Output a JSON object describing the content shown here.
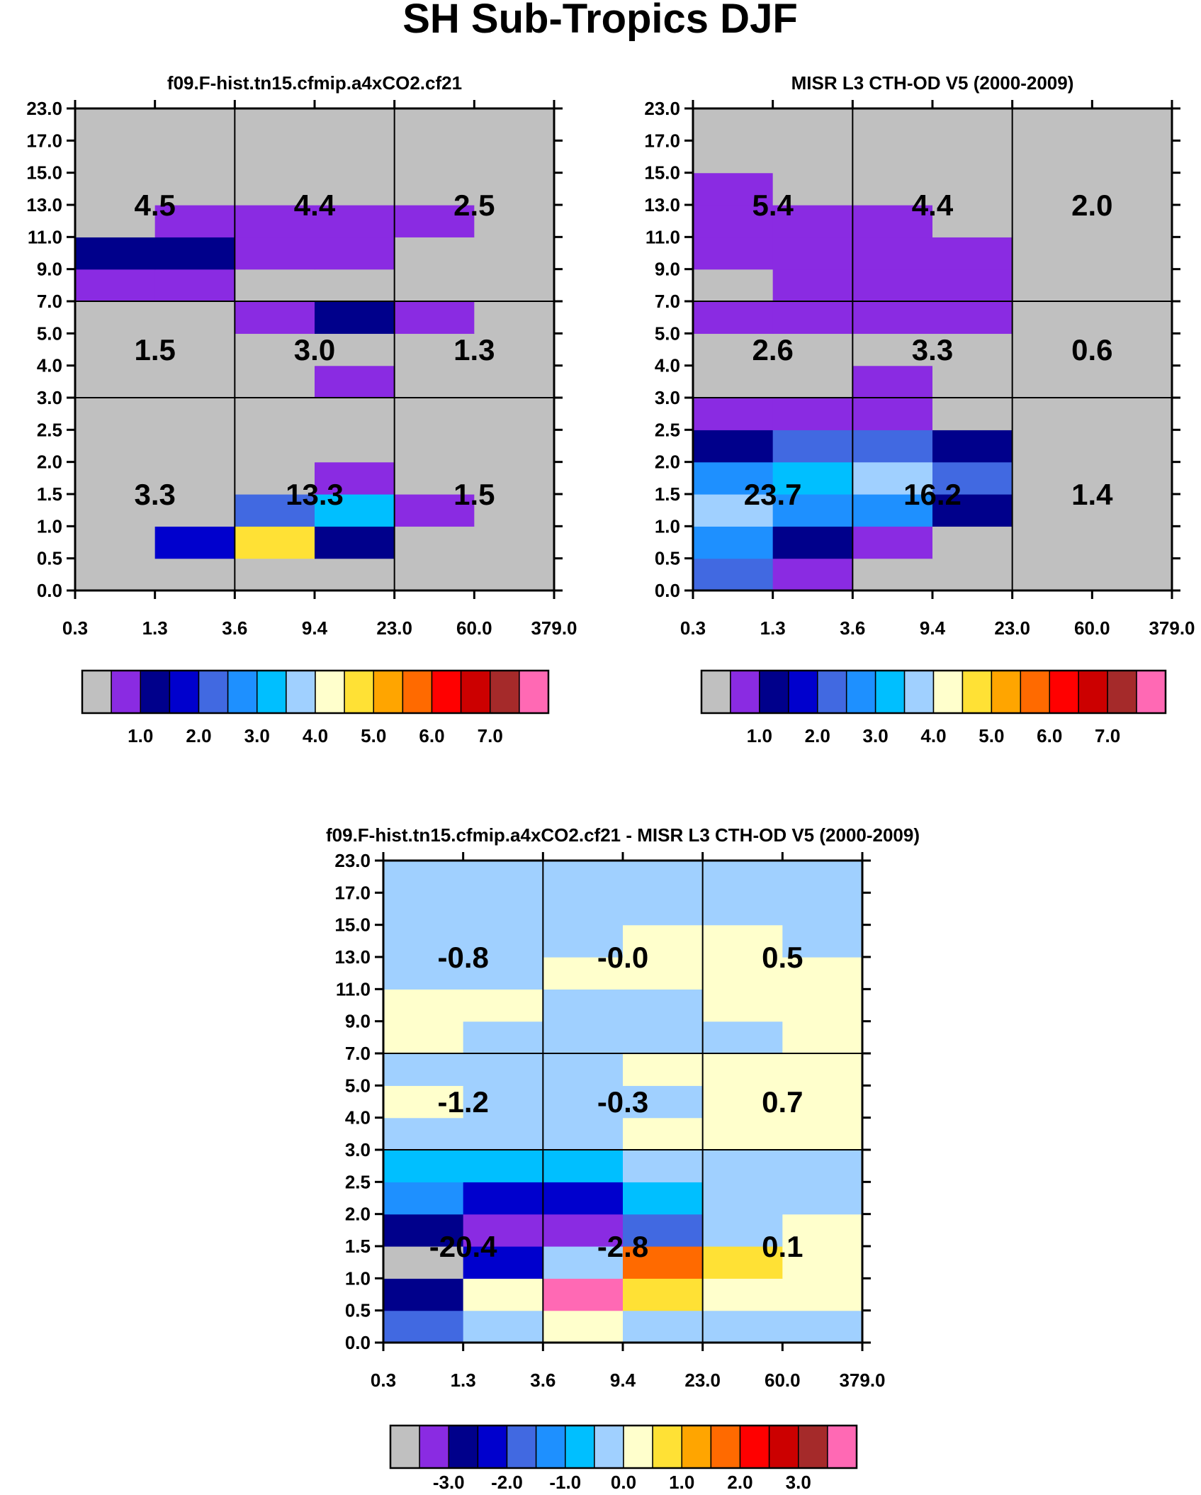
{
  "figure_title": "SH Sub-Tropics DJF",
  "chart_data": [
    {
      "type": "heatmap",
      "id": "model",
      "title": "f09.F-hist.tn15.cfmip.a4xCO2.cf21",
      "x_ticks": [
        "0.3",
        "1.3",
        "3.6",
        "9.4",
        "23.0",
        "60.0",
        "379.0"
      ],
      "y_ticks": [
        "0.0",
        "0.5",
        "1.0",
        "1.5",
        "2.0",
        "2.5",
        "3.0",
        "4.0",
        "5.0",
        "7.0",
        "9.0",
        "11.0",
        "13.0",
        "15.0",
        "17.0",
        "23.0"
      ],
      "cell_colors": [
        [
          "#c0c0c0",
          "#c0c0c0",
          "#c0c0c0",
          "#c0c0c0",
          "#c0c0c0",
          "#c0c0c0"
        ],
        [
          "#c0c0c0",
          "#0000cd",
          "#ffe135",
          "#00008b",
          "#c0c0c0",
          "#c0c0c0"
        ],
        [
          "#c0c0c0",
          "#c0c0c0",
          "#4169e1",
          "#00bfff",
          "#8a2be2",
          "#c0c0c0"
        ],
        [
          "#c0c0c0",
          "#c0c0c0",
          "#c0c0c0",
          "#8a2be2",
          "#c0c0c0",
          "#c0c0c0"
        ],
        [
          "#c0c0c0",
          "#c0c0c0",
          "#c0c0c0",
          "#c0c0c0",
          "#c0c0c0",
          "#c0c0c0"
        ],
        [
          "#c0c0c0",
          "#c0c0c0",
          "#c0c0c0",
          "#c0c0c0",
          "#c0c0c0",
          "#c0c0c0"
        ],
        [
          "#c0c0c0",
          "#c0c0c0",
          "#c0c0c0",
          "#8a2be2",
          "#c0c0c0",
          "#c0c0c0"
        ],
        [
          "#c0c0c0",
          "#c0c0c0",
          "#c0c0c0",
          "#c0c0c0",
          "#c0c0c0",
          "#c0c0c0"
        ],
        [
          "#c0c0c0",
          "#c0c0c0",
          "#8a2be2",
          "#00008b",
          "#8a2be2",
          "#c0c0c0"
        ],
        [
          "#8a2be2",
          "#8a2be2",
          "#c0c0c0",
          "#c0c0c0",
          "#c0c0c0",
          "#c0c0c0"
        ],
        [
          "#00008b",
          "#00008b",
          "#8a2be2",
          "#8a2be2",
          "#c0c0c0",
          "#c0c0c0"
        ],
        [
          "#c0c0c0",
          "#8a2be2",
          "#8a2be2",
          "#8a2be2",
          "#8a2be2",
          "#c0c0c0"
        ],
        [
          "#c0c0c0",
          "#c0c0c0",
          "#c0c0c0",
          "#c0c0c0",
          "#c0c0c0",
          "#c0c0c0"
        ],
        [
          "#c0c0c0",
          "#c0c0c0",
          "#c0c0c0",
          "#c0c0c0",
          "#c0c0c0",
          "#c0c0c0"
        ],
        [
          "#c0c0c0",
          "#c0c0c0",
          "#c0c0c0",
          "#c0c0c0",
          "#c0c0c0",
          "#c0c0c0"
        ]
      ],
      "group_totals": [
        [
          "3.3",
          "13.3",
          "1.5"
        ],
        [
          "1.5",
          "3.0",
          "1.3"
        ],
        [
          "4.5",
          "4.4",
          "2.5"
        ]
      ],
      "colorbar": {
        "colors": [
          "#c0c0c0",
          "#8a2be2",
          "#00008b",
          "#0000cd",
          "#4169e1",
          "#1e90ff",
          "#00bfff",
          "#a0d0ff",
          "#ffffcc",
          "#ffe135",
          "#ffa500",
          "#ff6a00",
          "#ff0000",
          "#cc0000",
          "#a52a2a",
          "#ff69b4"
        ],
        "labels": [
          "1.0",
          "2.0",
          "3.0",
          "4.0",
          "5.0",
          "6.0",
          "7.0"
        ]
      }
    },
    {
      "type": "heatmap",
      "id": "obs",
      "title": "MISR L3 CTH-OD V5 (2000-2009)",
      "x_ticks": [
        "0.3",
        "1.3",
        "3.6",
        "9.4",
        "23.0",
        "60.0",
        "379.0"
      ],
      "y_ticks": [
        "0.0",
        "0.5",
        "1.0",
        "1.5",
        "2.0",
        "2.5",
        "3.0",
        "4.0",
        "5.0",
        "7.0",
        "9.0",
        "11.0",
        "13.0",
        "15.0",
        "17.0",
        "23.0"
      ],
      "cell_colors": [
        [
          "#4169e1",
          "#8a2be2",
          "#c0c0c0",
          "#c0c0c0",
          "#c0c0c0",
          "#c0c0c0"
        ],
        [
          "#1e90ff",
          "#00008b",
          "#8a2be2",
          "#c0c0c0",
          "#c0c0c0",
          "#c0c0c0"
        ],
        [
          "#a0d0ff",
          "#1e90ff",
          "#1e90ff",
          "#00008b",
          "#c0c0c0",
          "#c0c0c0"
        ],
        [
          "#1e90ff",
          "#00bfff",
          "#a0d0ff",
          "#4169e1",
          "#c0c0c0",
          "#c0c0c0"
        ],
        [
          "#00008b",
          "#4169e1",
          "#4169e1",
          "#00008b",
          "#c0c0c0",
          "#c0c0c0"
        ],
        [
          "#8a2be2",
          "#8a2be2",
          "#8a2be2",
          "#c0c0c0",
          "#c0c0c0",
          "#c0c0c0"
        ],
        [
          "#c0c0c0",
          "#c0c0c0",
          "#8a2be2",
          "#c0c0c0",
          "#c0c0c0",
          "#c0c0c0"
        ],
        [
          "#c0c0c0",
          "#c0c0c0",
          "#c0c0c0",
          "#c0c0c0",
          "#c0c0c0",
          "#c0c0c0"
        ],
        [
          "#8a2be2",
          "#8a2be2",
          "#8a2be2",
          "#8a2be2",
          "#c0c0c0",
          "#c0c0c0"
        ],
        [
          "#c0c0c0",
          "#8a2be2",
          "#8a2be2",
          "#8a2be2",
          "#c0c0c0",
          "#c0c0c0"
        ],
        [
          "#8a2be2",
          "#8a2be2",
          "#8a2be2",
          "#8a2be2",
          "#c0c0c0",
          "#c0c0c0"
        ],
        [
          "#8a2be2",
          "#8a2be2",
          "#8a2be2",
          "#c0c0c0",
          "#c0c0c0",
          "#c0c0c0"
        ],
        [
          "#8a2be2",
          "#c0c0c0",
          "#c0c0c0",
          "#c0c0c0",
          "#c0c0c0",
          "#c0c0c0"
        ],
        [
          "#c0c0c0",
          "#c0c0c0",
          "#c0c0c0",
          "#c0c0c0",
          "#c0c0c0",
          "#c0c0c0"
        ],
        [
          "#c0c0c0",
          "#c0c0c0",
          "#c0c0c0",
          "#c0c0c0",
          "#c0c0c0",
          "#c0c0c0"
        ]
      ],
      "group_totals": [
        [
          "23.7",
          "16.2",
          "1.4"
        ],
        [
          "2.6",
          "3.3",
          "0.6"
        ],
        [
          "5.4",
          "4.4",
          "2.0"
        ]
      ],
      "colorbar": {
        "colors": [
          "#c0c0c0",
          "#8a2be2",
          "#00008b",
          "#0000cd",
          "#4169e1",
          "#1e90ff",
          "#00bfff",
          "#a0d0ff",
          "#ffffcc",
          "#ffe135",
          "#ffa500",
          "#ff6a00",
          "#ff0000",
          "#cc0000",
          "#a52a2a",
          "#ff69b4"
        ],
        "labels": [
          "1.0",
          "2.0",
          "3.0",
          "4.0",
          "5.0",
          "6.0",
          "7.0"
        ]
      }
    },
    {
      "type": "heatmap",
      "id": "diff",
      "title": "f09.F-hist.tn15.cfmip.a4xCO2.cf21 - MISR L3 CTH-OD V5 (2000-2009)",
      "x_ticks": [
        "0.3",
        "1.3",
        "3.6",
        "9.4",
        "23.0",
        "60.0",
        "379.0"
      ],
      "y_ticks": [
        "0.0",
        "0.5",
        "1.0",
        "1.5",
        "2.0",
        "2.5",
        "3.0",
        "4.0",
        "5.0",
        "7.0",
        "9.0",
        "11.0",
        "13.0",
        "15.0",
        "17.0",
        "23.0"
      ],
      "cell_colors": [
        [
          "#4169e1",
          "#a0d0ff",
          "#ffffcc",
          "#a0d0ff",
          "#a0d0ff",
          "#a0d0ff"
        ],
        [
          "#00008b",
          "#ffffcc",
          "#ff69b4",
          "#ffe135",
          "#ffffcc",
          "#ffffcc"
        ],
        [
          "#c0c0c0",
          "#0000cd",
          "#a0d0ff",
          "#ff6a00",
          "#ffe135",
          "#ffffcc"
        ],
        [
          "#00008b",
          "#8a2be2",
          "#8a2be2",
          "#4169e1",
          "#a0d0ff",
          "#ffffcc"
        ],
        [
          "#1e90ff",
          "#0000cd",
          "#0000cd",
          "#00bfff",
          "#a0d0ff",
          "#a0d0ff"
        ],
        [
          "#00bfff",
          "#00bfff",
          "#00bfff",
          "#a0d0ff",
          "#a0d0ff",
          "#a0d0ff"
        ],
        [
          "#a0d0ff",
          "#a0d0ff",
          "#a0d0ff",
          "#ffffcc",
          "#ffffcc",
          "#ffffcc"
        ],
        [
          "#ffffcc",
          "#a0d0ff",
          "#a0d0ff",
          "#a0d0ff",
          "#ffffcc",
          "#ffffcc"
        ],
        [
          "#a0d0ff",
          "#a0d0ff",
          "#a0d0ff",
          "#ffffcc",
          "#ffffcc",
          "#ffffcc"
        ],
        [
          "#ffffcc",
          "#a0d0ff",
          "#a0d0ff",
          "#a0d0ff",
          "#a0d0ff",
          "#ffffcc"
        ],
        [
          "#ffffcc",
          "#ffffcc",
          "#a0d0ff",
          "#a0d0ff",
          "#ffffcc",
          "#ffffcc"
        ],
        [
          "#a0d0ff",
          "#a0d0ff",
          "#ffffcc",
          "#ffffcc",
          "#ffffcc",
          "#ffffcc"
        ],
        [
          "#a0d0ff",
          "#a0d0ff",
          "#a0d0ff",
          "#ffffcc",
          "#ffffcc",
          "#a0d0ff"
        ],
        [
          "#a0d0ff",
          "#a0d0ff",
          "#a0d0ff",
          "#a0d0ff",
          "#a0d0ff",
          "#a0d0ff"
        ],
        [
          "#a0d0ff",
          "#a0d0ff",
          "#a0d0ff",
          "#a0d0ff",
          "#a0d0ff",
          "#a0d0ff"
        ]
      ],
      "group_totals": [
        [
          "-20.4",
          "-2.8",
          "0.1"
        ],
        [
          "-1.2",
          "-0.3",
          "0.7"
        ],
        [
          "-0.8",
          "-0.0",
          "0.5"
        ]
      ],
      "colorbar": {
        "colors": [
          "#c0c0c0",
          "#8a2be2",
          "#00008b",
          "#0000cd",
          "#4169e1",
          "#1e90ff",
          "#00bfff",
          "#a0d0ff",
          "#ffffcc",
          "#ffe135",
          "#ffa500",
          "#ff6a00",
          "#ff0000",
          "#cc0000",
          "#a52a2a",
          "#ff69b4"
        ],
        "labels": [
          "-3.0",
          "-2.0",
          "-1.0",
          "0.0",
          "1.0",
          "2.0",
          "3.0"
        ]
      }
    }
  ]
}
